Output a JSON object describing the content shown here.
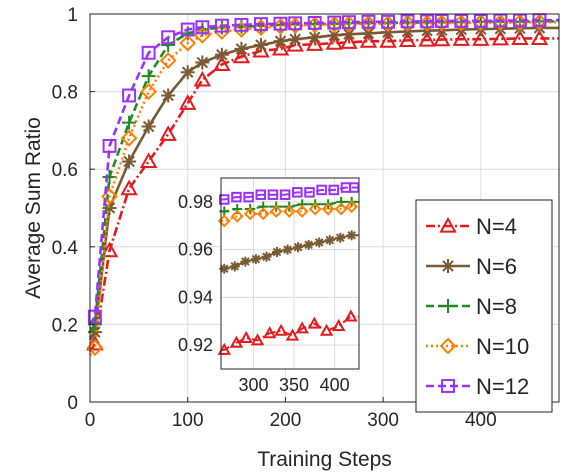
{
  "chart_data": {
    "type": "line",
    "xlabel": "Training Steps",
    "ylabel": "Average Sum Ratio",
    "xlim": [
      0,
      480
    ],
    "ylim": [
      0,
      1
    ],
    "xticks": [
      "0",
      "100",
      "200",
      "300",
      "400"
    ],
    "yticks": [
      "0",
      "0.2",
      "0.4",
      "0.6",
      "0.8",
      "1"
    ],
    "grid": true,
    "legend_position": "bottom-right",
    "series": [
      {
        "name": "N=4",
        "color": "#e41a1c",
        "marker": "triangle",
        "dash": "dashdot",
        "markers": [
          [
            5,
            0.15
          ],
          [
            20,
            0.39
          ],
          [
            40,
            0.55
          ],
          [
            60,
            0.62
          ],
          [
            80,
            0.69
          ],
          [
            100,
            0.77
          ],
          [
            115,
            0.83
          ],
          [
            135,
            0.87
          ],
          [
            155,
            0.89
          ],
          [
            175,
            0.905
          ],
          [
            195,
            0.91
          ],
          [
            210,
            0.92
          ],
          [
            230,
            0.922
          ],
          [
            250,
            0.925
          ],
          [
            265,
            0.927
          ],
          [
            285,
            0.93
          ],
          [
            305,
            0.93
          ],
          [
            325,
            0.932
          ],
          [
            345,
            0.933
          ],
          [
            360,
            0.934
          ],
          [
            380,
            0.935
          ],
          [
            400,
            0.935
          ],
          [
            420,
            0.936
          ],
          [
            440,
            0.937
          ],
          [
            460,
            0.937
          ]
        ]
      },
      {
        "name": "N=6",
        "color": "#7a5a32",
        "marker": "asterisk",
        "dash": "solid",
        "markers": [
          [
            5,
            0.18
          ],
          [
            20,
            0.5
          ],
          [
            40,
            0.62
          ],
          [
            60,
            0.71
          ],
          [
            80,
            0.79
          ],
          [
            100,
            0.85
          ],
          [
            115,
            0.875
          ],
          [
            135,
            0.895
          ],
          [
            155,
            0.91
          ],
          [
            175,
            0.92
          ],
          [
            195,
            0.93
          ],
          [
            210,
            0.935
          ],
          [
            230,
            0.94
          ],
          [
            250,
            0.945
          ],
          [
            265,
            0.948
          ],
          [
            285,
            0.95
          ],
          [
            305,
            0.953
          ],
          [
            325,
            0.955
          ],
          [
            345,
            0.957
          ],
          [
            360,
            0.958
          ],
          [
            380,
            0.96
          ],
          [
            400,
            0.961
          ],
          [
            420,
            0.962
          ],
          [
            440,
            0.963
          ],
          [
            460,
            0.964
          ]
        ]
      },
      {
        "name": "N=8",
        "color": "#1f8a1f",
        "marker": "plus",
        "dash": "dashed",
        "markers": [
          [
            5,
            0.2
          ],
          [
            20,
            0.58
          ],
          [
            40,
            0.72
          ],
          [
            60,
            0.84
          ],
          [
            80,
            0.92
          ],
          [
            100,
            0.95
          ],
          [
            115,
            0.96
          ],
          [
            135,
            0.965
          ],
          [
            155,
            0.967
          ],
          [
            175,
            0.97
          ],
          [
            195,
            0.972
          ],
          [
            210,
            0.973
          ],
          [
            230,
            0.974
          ],
          [
            250,
            0.975
          ],
          [
            265,
            0.976
          ],
          [
            285,
            0.977
          ],
          [
            305,
            0.977
          ],
          [
            325,
            0.978
          ],
          [
            345,
            0.978
          ],
          [
            360,
            0.979
          ],
          [
            380,
            0.979
          ],
          [
            400,
            0.98
          ],
          [
            420,
            0.98
          ],
          [
            440,
            0.98
          ],
          [
            460,
            0.981
          ]
        ]
      },
      {
        "name": "N=10",
        "color": "#ff7f00",
        "marker": "diamond",
        "dash": "dotted",
        "markers": [
          [
            5,
            0.14
          ],
          [
            20,
            0.53
          ],
          [
            40,
            0.68
          ],
          [
            60,
            0.8
          ],
          [
            80,
            0.88
          ],
          [
            100,
            0.925
          ],
          [
            115,
            0.945
          ],
          [
            135,
            0.955
          ],
          [
            155,
            0.96
          ],
          [
            175,
            0.965
          ],
          [
            195,
            0.968
          ],
          [
            210,
            0.97
          ],
          [
            230,
            0.972
          ],
          [
            250,
            0.973
          ],
          [
            265,
            0.974
          ],
          [
            285,
            0.975
          ],
          [
            305,
            0.975
          ],
          [
            325,
            0.976
          ],
          [
            345,
            0.976
          ],
          [
            360,
            0.977
          ],
          [
            380,
            0.977
          ],
          [
            400,
            0.978
          ],
          [
            420,
            0.978
          ],
          [
            440,
            0.978
          ],
          [
            460,
            0.979
          ]
        ]
      },
      {
        "name": "N=12",
        "color": "#9b30ff",
        "marker": "square",
        "dash": "dashed",
        "markers": [
          [
            5,
            0.22
          ],
          [
            20,
            0.66
          ],
          [
            40,
            0.79
          ],
          [
            60,
            0.9
          ],
          [
            80,
            0.94
          ],
          [
            100,
            0.96
          ],
          [
            115,
            0.966
          ],
          [
            135,
            0.97
          ],
          [
            155,
            0.972
          ],
          [
            175,
            0.974
          ],
          [
            195,
            0.975
          ],
          [
            210,
            0.976
          ],
          [
            230,
            0.977
          ],
          [
            250,
            0.978
          ],
          [
            265,
            0.979
          ],
          [
            285,
            0.98
          ],
          [
            305,
            0.98
          ],
          [
            325,
            0.981
          ],
          [
            345,
            0.981
          ],
          [
            360,
            0.982
          ],
          [
            380,
            0.982
          ],
          [
            400,
            0.982
          ],
          [
            420,
            0.983
          ],
          [
            440,
            0.983
          ],
          [
            460,
            0.984
          ]
        ]
      }
    ],
    "inset": {
      "xlim": [
        260,
        430
      ],
      "ylim": [
        0.91,
        0.99
      ],
      "xticks": [
        "300",
        "350",
        "400"
      ],
      "yticks": [
        "0.92",
        "0.94",
        "0.96",
        "0.98"
      ],
      "series": [
        {
          "name": "N=4",
          "markers": [
            [
              264,
              0.918
            ],
            [
              279,
              0.921
            ],
            [
              291,
              0.923
            ],
            [
              305,
              0.922
            ],
            [
              320,
              0.925
            ],
            [
              334,
              0.926
            ],
            [
              348,
              0.924
            ],
            [
              360,
              0.927
            ],
            [
              375,
              0.929
            ],
            [
              390,
              0.926
            ],
            [
              405,
              0.928
            ],
            [
              420,
              0.932
            ]
          ]
        },
        {
          "name": "N=6",
          "markers": [
            [
              264,
              0.952
            ],
            [
              277,
              0.953
            ],
            [
              290,
              0.955
            ],
            [
              303,
              0.956
            ],
            [
              316,
              0.957
            ],
            [
              329,
              0.959
            ],
            [
              342,
              0.96
            ],
            [
              355,
              0.961
            ],
            [
              368,
              0.962
            ],
            [
              381,
              0.963
            ],
            [
              394,
              0.964
            ],
            [
              407,
              0.965
            ],
            [
              421,
              0.966
            ]
          ]
        },
        {
          "name": "N=8",
          "markers": [
            [
              264,
              0.976
            ],
            [
              280,
              0.977
            ],
            [
              296,
              0.977
            ],
            [
              312,
              0.978
            ],
            [
              328,
              0.978
            ],
            [
              344,
              0.978
            ],
            [
              360,
              0.979
            ],
            [
              376,
              0.979
            ],
            [
              392,
              0.979
            ],
            [
              408,
              0.98
            ],
            [
              421,
              0.98
            ]
          ]
        },
        {
          "name": "N=10",
          "markers": [
            [
              264,
              0.972
            ],
            [
              280,
              0.974
            ],
            [
              296,
              0.975
            ],
            [
              312,
              0.975
            ],
            [
              328,
              0.976
            ],
            [
              344,
              0.976
            ],
            [
              360,
              0.976
            ],
            [
              376,
              0.977
            ],
            [
              392,
              0.977
            ],
            [
              408,
              0.977
            ],
            [
              421,
              0.978
            ]
          ]
        },
        {
          "name": "N=12",
          "markers": [
            [
              264,
              0.981
            ],
            [
              279,
              0.982
            ],
            [
              294,
              0.982
            ],
            [
              309,
              0.983
            ],
            [
              324,
              0.983
            ],
            [
              339,
              0.983
            ],
            [
              354,
              0.984
            ],
            [
              369,
              0.984
            ],
            [
              384,
              0.985
            ],
            [
              399,
              0.985
            ],
            [
              414,
              0.986
            ],
            [
              424,
              0.986
            ]
          ]
        }
      ]
    }
  }
}
